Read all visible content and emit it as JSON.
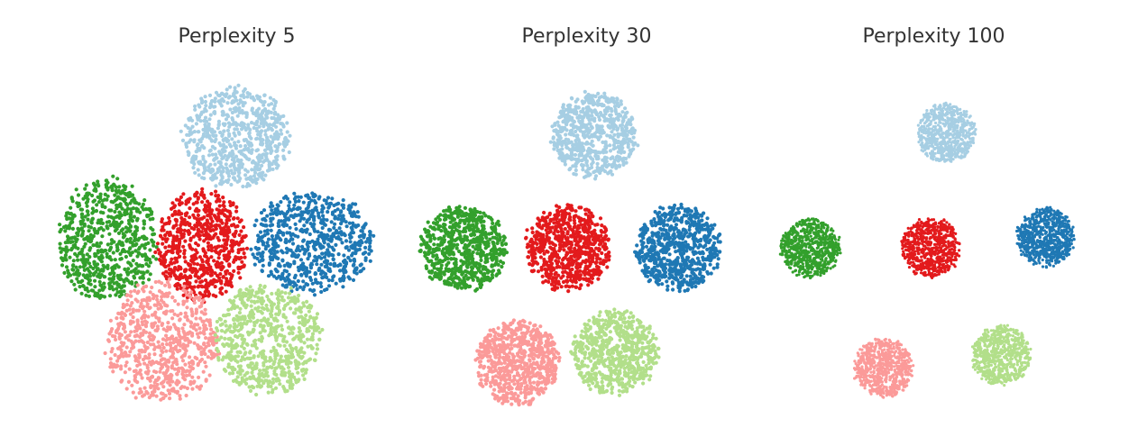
{
  "chart_data": [
    {
      "type": "scatter",
      "title": "Perplexity 5",
      "axes_visible": false,
      "grid": false,
      "series": [
        {
          "color": "#a6cee3",
          "center": [
            0.0,
            2.1
          ],
          "spread": [
            1.0,
            0.95
          ],
          "n": 700
        },
        {
          "color": "#33a02c",
          "center": [
            -2.45,
            0.15
          ],
          "spread": [
            0.95,
            1.15
          ],
          "n": 700
        },
        {
          "color": "#e31a1c",
          "center": [
            -0.65,
            0.05
          ],
          "spread": [
            0.85,
            1.05
          ],
          "n": 700
        },
        {
          "color": "#1f78b4",
          "center": [
            1.45,
            0.1
          ],
          "spread": [
            1.15,
            0.95
          ],
          "n": 700
        },
        {
          "color": "#fb9a99",
          "center": [
            -1.4,
            -1.8
          ],
          "spread": [
            1.05,
            1.15
          ],
          "n": 700
        },
        {
          "color": "#b2df8a",
          "center": [
            0.6,
            -1.75
          ],
          "spread": [
            1.0,
            1.05
          ],
          "n": 700
        }
      ]
    },
    {
      "type": "scatter",
      "title": "Perplexity 30",
      "axes_visible": false,
      "grid": false,
      "series": [
        {
          "color": "#a6cee3",
          "center": [
            0.15,
            2.15
          ],
          "spread": [
            0.8,
            0.8
          ],
          "n": 700
        },
        {
          "color": "#33a02c",
          "center": [
            -2.35,
            0.0
          ],
          "spread": [
            0.8,
            0.8
          ],
          "n": 700
        },
        {
          "color": "#e31a1c",
          "center": [
            -0.35,
            0.0
          ],
          "spread": [
            0.8,
            0.8
          ],
          "n": 700
        },
        {
          "color": "#1f78b4",
          "center": [
            1.75,
            0.0
          ],
          "spread": [
            0.8,
            0.8
          ],
          "n": 700
        },
        {
          "color": "#fb9a99",
          "center": [
            -1.3,
            -2.2
          ],
          "spread": [
            0.8,
            0.8
          ],
          "n": 700
        },
        {
          "color": "#b2df8a",
          "center": [
            0.55,
            -2.0
          ],
          "spread": [
            0.8,
            0.8
          ],
          "n": 700
        }
      ]
    },
    {
      "type": "scatter",
      "title": "Perplexity 100",
      "axes_visible": false,
      "grid": false,
      "series": [
        {
          "color": "#a6cee3",
          "center": [
            0.25,
            2.2
          ],
          "spread": [
            0.55,
            0.55
          ],
          "n": 700
        },
        {
          "color": "#33a02c",
          "center": [
            -2.35,
            0.0
          ],
          "spread": [
            0.55,
            0.55
          ],
          "n": 700
        },
        {
          "color": "#e31a1c",
          "center": [
            -0.05,
            0.0
          ],
          "spread": [
            0.55,
            0.55
          ],
          "n": 700
        },
        {
          "color": "#1f78b4",
          "center": [
            2.15,
            0.2
          ],
          "spread": [
            0.55,
            0.55
          ],
          "n": 700
        },
        {
          "color": "#fb9a99",
          "center": [
            -0.95,
            -2.3
          ],
          "spread": [
            0.55,
            0.55
          ],
          "n": 700
        },
        {
          "color": "#b2df8a",
          "center": [
            1.3,
            -2.05
          ],
          "spread": [
            0.55,
            0.55
          ],
          "n": 700
        }
      ]
    }
  ]
}
